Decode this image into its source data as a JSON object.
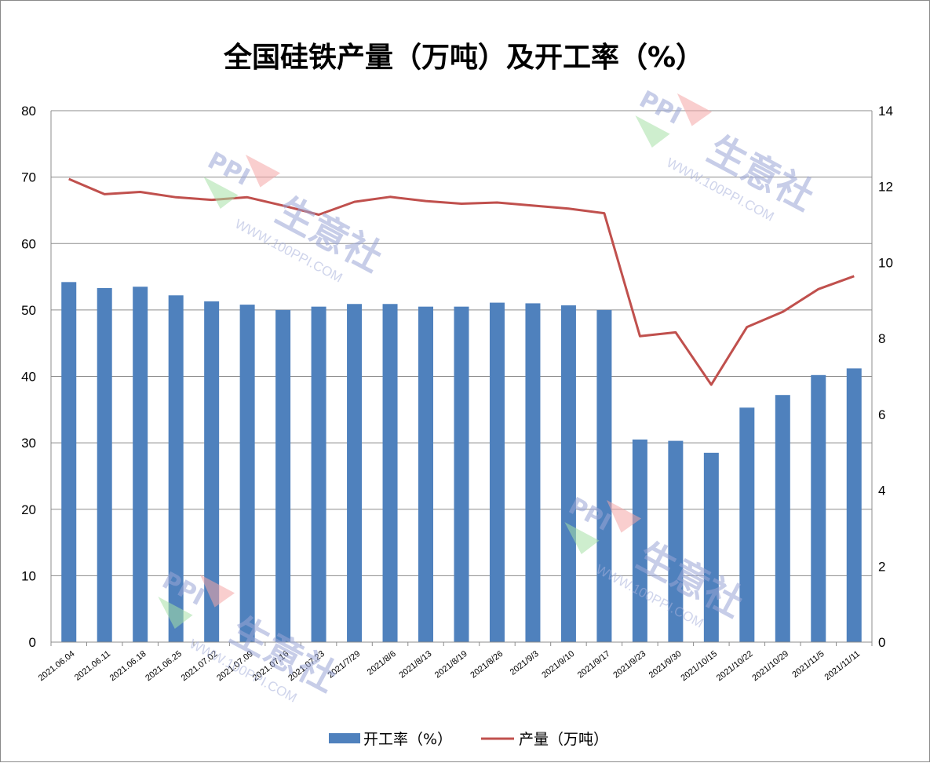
{
  "chart_data": {
    "type": "bar",
    "title": "全国硅铁产量（万吨）及开工率（%）",
    "categories": [
      "2021.06.04",
      "2021.06.11",
      "2021.06.18",
      "2021.06.25",
      "2021.07.02",
      "2021.07.09",
      "2021.07.16",
      "2021.07.23",
      "2021/7/29",
      "2021/8/6",
      "2021/8/13",
      "2021/8/19",
      "2021/8/26",
      "2021/9/3",
      "2021/9/10",
      "2021/9/17",
      "2021/9/23",
      "2021/9/30",
      "2021/10/15",
      "2021/10/22",
      "2021/10/29",
      "2021/11/5",
      "2021/11/11"
    ],
    "series": [
      {
        "name": "开工率（%）",
        "type": "bar",
        "axis": "left",
        "color": "#4f81bd",
        "values": [
          54.2,
          53.3,
          53.5,
          52.2,
          51.3,
          50.8,
          50.0,
          50.5,
          50.9,
          50.9,
          50.5,
          50.5,
          51.1,
          51.0,
          50.7,
          50.0,
          30.5,
          30.3,
          28.5,
          35.3,
          37.2,
          40.2,
          41.2
        ]
      },
      {
        "name": "产量（万吨）",
        "type": "line",
        "axis": "right",
        "color": "#c0504d",
        "values": [
          12.2,
          11.8,
          11.86,
          11.72,
          11.65,
          11.72,
          11.5,
          11.26,
          11.6,
          11.73,
          11.62,
          11.55,
          11.58,
          11.5,
          11.42,
          11.3,
          8.06,
          8.16,
          6.78,
          8.3,
          8.7,
          9.3,
          9.64
        ]
      }
    ],
    "y_left": {
      "min": 0,
      "max": 80,
      "ticks": [
        0,
        10,
        20,
        30,
        40,
        50,
        60,
        70,
        80
      ]
    },
    "y_right": {
      "min": 0,
      "max": 14,
      "ticks": [
        0,
        2,
        4,
        6,
        8,
        10,
        12,
        14
      ]
    },
    "grid": true,
    "legend_position": "bottom"
  },
  "watermark": {
    "brand": "生意社",
    "url": "WWW.100PPI.COM",
    "logo": "PPI"
  }
}
